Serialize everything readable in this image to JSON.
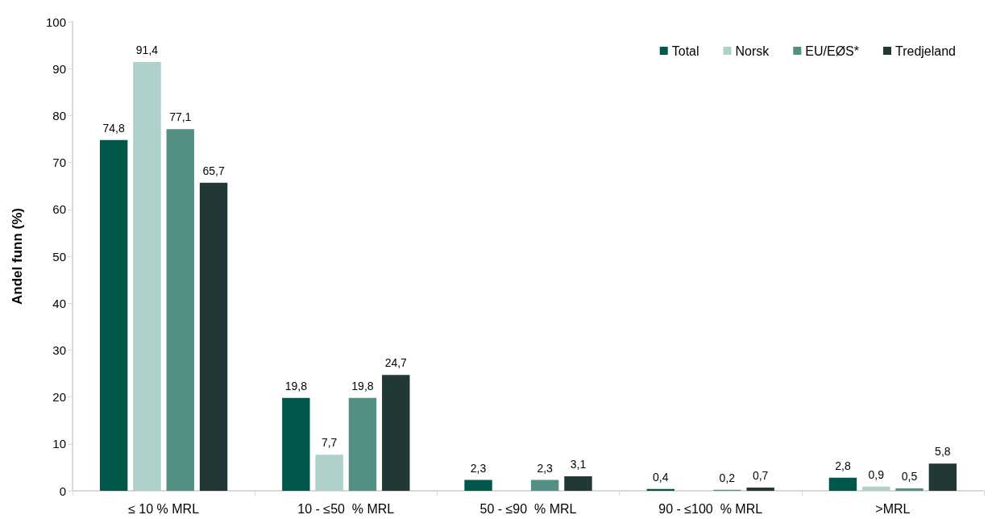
{
  "chart_data": {
    "type": "bar",
    "ylabel": "Andel funn (%)",
    "categories": [
      "≤ 10 % MRL",
      "10 - ≤50  % MRL",
      "50 - ≤90  % MRL",
      "90 - ≤100  % MRL",
      ">MRL"
    ],
    "series": [
      {
        "name": "Total",
        "color": "#00584b",
        "values": [
          74.8,
          19.8,
          2.3,
          0.4,
          2.8
        ],
        "value_labels": [
          "74,8",
          "19,8",
          "2,3",
          "0,4",
          "2,8"
        ]
      },
      {
        "name": "Norsk",
        "color": "#aecfca",
        "values": [
          91.4,
          7.7,
          null,
          null,
          0.9
        ],
        "value_labels": [
          "91,4",
          "7,7",
          null,
          null,
          "0,9"
        ]
      },
      {
        "name": "EU/EØS*",
        "color": "#548f86",
        "values": [
          77.1,
          19.8,
          2.3,
          0.2,
          0.5
        ],
        "value_labels": [
          "77,1",
          "19,8",
          "2,3",
          "0,2",
          "0,5"
        ]
      },
      {
        "name": "Tredjeland",
        "color": "#223836",
        "values": [
          65.7,
          24.7,
          3.1,
          0.7,
          5.8
        ],
        "value_labels": [
          "65,7",
          "24,7",
          "3,1",
          "0,7",
          "5,8"
        ]
      }
    ],
    "ylim": [
      0,
      100
    ],
    "yticks": [
      0,
      10,
      20,
      30,
      40,
      50,
      60,
      70,
      80,
      90,
      100
    ],
    "grid": false,
    "legend": "top right"
  }
}
